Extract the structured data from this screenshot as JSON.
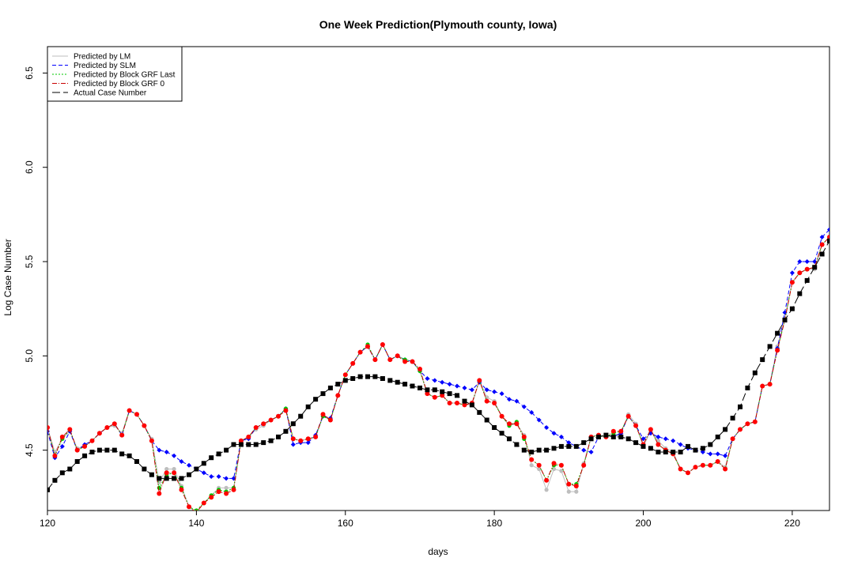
{
  "chart_data": {
    "type": "line",
    "title": "One Week Prediction(Plymouth county, Iowa)",
    "xlabel": "days",
    "ylabel": "Log Case Number",
    "xlim": [
      120,
      225
    ],
    "ylim": [
      4.18,
      6.64
    ],
    "x_ticks": [
      120,
      140,
      160,
      180,
      200,
      220
    ],
    "y_ticks": [
      4.5,
      5.0,
      5.5,
      6.0,
      6.5
    ],
    "legend_position": "top-left",
    "x": [
      120,
      121,
      122,
      123,
      124,
      125,
      126,
      127,
      128,
      129,
      130,
      131,
      132,
      133,
      134,
      135,
      136,
      137,
      138,
      139,
      140,
      141,
      142,
      143,
      144,
      145,
      146,
      147,
      148,
      149,
      150,
      151,
      152,
      153,
      154,
      155,
      156,
      157,
      158,
      159,
      160,
      161,
      162,
      163,
      164,
      165,
      166,
      167,
      168,
      169,
      170,
      171,
      172,
      173,
      174,
      175,
      176,
      177,
      178,
      179,
      180,
      181,
      182,
      183,
      184,
      185,
      186,
      187,
      188,
      189,
      190,
      191,
      192,
      193,
      194,
      195,
      196,
      197,
      198,
      199,
      200,
      201,
      202,
      203,
      204,
      205,
      206,
      207,
      208,
      209,
      210,
      211,
      212,
      213,
      214,
      215,
      216,
      217,
      218,
      219,
      220,
      221,
      222,
      223,
      224,
      225
    ],
    "series": [
      {
        "name": "Predicted by LM",
        "color": "#bebebe",
        "dash": "",
        "values": [
          4.62,
          4.49,
          4.56,
          4.6,
          4.51,
          4.52,
          4.55,
          4.59,
          4.62,
          4.63,
          4.59,
          4.71,
          4.69,
          4.63,
          4.56,
          4.33,
          4.4,
          4.4,
          4.31,
          4.2,
          4.17,
          4.22,
          4.26,
          4.3,
          4.3,
          4.3,
          4.55,
          4.57,
          4.61,
          4.63,
          4.66,
          4.68,
          4.72,
          4.56,
          4.55,
          4.56,
          4.57,
          4.68,
          4.66,
          4.79,
          4.9,
          4.96,
          5.02,
          5.05,
          4.98,
          5.06,
          4.98,
          5.0,
          4.98,
          4.97,
          4.92,
          4.8,
          4.78,
          4.79,
          4.75,
          4.75,
          4.74,
          4.74,
          4.87,
          4.78,
          4.76,
          4.68,
          4.63,
          4.64,
          4.58,
          4.42,
          4.4,
          4.29,
          4.4,
          4.39,
          4.28,
          4.28,
          4.43,
          4.57,
          4.58,
          4.57,
          4.58,
          4.59,
          4.69,
          4.64,
          4.52,
          4.6,
          4.55,
          4.51,
          4.49,
          4.4,
          4.38,
          4.41,
          4.42,
          4.42,
          4.44,
          4.41,
          4.56,
          4.61,
          4.64,
          4.65,
          4.84,
          4.85,
          5.05,
          5.2,
          5.39,
          5.44,
          5.46,
          5.46,
          5.59,
          5.63
        ]
      },
      {
        "name": "Predicted by SLM",
        "color": "#0000ff",
        "dash": "5,3",
        "values": [
          4.6,
          4.46,
          4.52,
          4.6,
          4.5,
          4.53,
          4.55,
          4.59,
          4.62,
          4.64,
          4.58,
          4.71,
          4.69,
          4.63,
          4.55,
          4.5,
          4.49,
          4.47,
          4.44,
          4.42,
          4.4,
          4.38,
          4.36,
          4.36,
          4.35,
          4.35,
          4.55,
          4.56,
          4.62,
          4.64,
          4.66,
          4.68,
          4.72,
          4.53,
          4.54,
          4.54,
          4.58,
          4.68,
          4.67,
          4.79,
          4.9,
          4.96,
          5.02,
          5.05,
          4.98,
          5.06,
          4.98,
          5.0,
          4.98,
          4.97,
          4.92,
          4.88,
          4.87,
          4.86,
          4.85,
          4.84,
          4.83,
          4.82,
          4.86,
          4.82,
          4.81,
          4.8,
          4.77,
          4.76,
          4.73,
          4.7,
          4.66,
          4.62,
          4.59,
          4.57,
          4.54,
          4.52,
          4.5,
          4.49,
          4.57,
          4.58,
          4.57,
          4.59,
          4.68,
          4.63,
          4.56,
          4.59,
          4.57,
          4.56,
          4.55,
          4.53,
          4.51,
          4.5,
          4.49,
          4.48,
          4.48,
          4.47,
          4.56,
          4.61,
          4.64,
          4.65,
          4.84,
          4.85,
          5.04,
          5.23,
          5.44,
          5.5,
          5.5,
          5.5,
          5.63,
          5.67
        ]
      },
      {
        "name": "Predicted by Block GRF Last",
        "color": "#00c800",
        "dash": "2,2",
        "values": [
          4.62,
          4.47,
          4.56,
          4.61,
          4.5,
          4.52,
          4.55,
          4.59,
          4.62,
          4.64,
          4.58,
          4.71,
          4.69,
          4.63,
          4.55,
          4.3,
          4.37,
          4.38,
          4.3,
          4.2,
          4.18,
          4.22,
          4.26,
          4.29,
          4.28,
          4.3,
          4.55,
          4.57,
          4.62,
          4.64,
          4.66,
          4.68,
          4.72,
          4.56,
          4.55,
          4.56,
          4.57,
          4.68,
          4.66,
          4.79,
          4.9,
          4.96,
          5.02,
          5.06,
          4.98,
          5.06,
          4.98,
          5.0,
          4.98,
          4.97,
          4.92,
          4.8,
          4.78,
          4.79,
          4.75,
          4.75,
          4.74,
          4.75,
          4.87,
          4.76,
          4.75,
          4.68,
          4.63,
          4.65,
          4.56,
          4.45,
          4.42,
          4.34,
          4.42,
          4.42,
          4.32,
          4.32,
          4.42,
          4.57,
          4.58,
          4.57,
          4.59,
          4.6,
          4.68,
          4.63,
          4.53,
          4.61,
          4.53,
          4.5,
          4.48,
          4.4,
          4.38,
          4.41,
          4.42,
          4.42,
          4.44,
          4.4,
          4.56,
          4.61,
          4.64,
          4.65,
          4.84,
          4.85,
          5.03,
          5.19,
          5.39,
          5.44,
          5.46,
          5.47,
          5.59,
          5.63
        ]
      },
      {
        "name": "Predicted by Block GRF 0",
        "color": "#c80000",
        "dash": "6,2,1,2",
        "values": [
          4.62,
          4.47,
          4.57,
          4.61,
          4.5,
          4.52,
          4.55,
          4.59,
          4.62,
          4.64,
          4.58,
          4.71,
          4.69,
          4.63,
          4.55,
          4.27,
          4.38,
          4.38,
          4.29,
          4.2,
          4.17,
          4.22,
          4.25,
          4.28,
          4.27,
          4.29,
          4.55,
          4.57,
          4.62,
          4.64,
          4.66,
          4.68,
          4.71,
          4.56,
          4.55,
          4.56,
          4.57,
          4.69,
          4.66,
          4.79,
          4.9,
          4.96,
          5.02,
          5.05,
          4.98,
          5.06,
          4.98,
          5.0,
          4.97,
          4.97,
          4.93,
          4.8,
          4.78,
          4.79,
          4.75,
          4.75,
          4.74,
          4.75,
          4.87,
          4.76,
          4.75,
          4.68,
          4.64,
          4.64,
          4.57,
          4.45,
          4.42,
          4.34,
          4.43,
          4.42,
          4.32,
          4.31,
          4.42,
          4.57,
          4.58,
          4.57,
          4.6,
          4.6,
          4.68,
          4.63,
          4.53,
          4.61,
          4.53,
          4.5,
          4.48,
          4.4,
          4.38,
          4.41,
          4.42,
          4.42,
          4.44,
          4.4,
          4.56,
          4.61,
          4.64,
          4.65,
          4.84,
          4.85,
          5.03,
          5.19,
          5.39,
          5.44,
          5.46,
          5.47,
          5.59,
          5.63
        ]
      },
      {
        "name": "Actual Case Number",
        "color": "#000000",
        "dash": "10,4",
        "values": [
          4.29,
          4.34,
          4.38,
          4.4,
          4.44,
          4.47,
          4.49,
          4.5,
          4.5,
          4.5,
          4.48,
          4.47,
          4.44,
          4.4,
          4.37,
          4.35,
          4.35,
          4.35,
          4.35,
          4.37,
          4.4,
          4.43,
          4.46,
          4.48,
          4.5,
          4.53,
          4.53,
          4.53,
          4.53,
          4.54,
          4.55,
          4.57,
          4.6,
          4.64,
          4.68,
          4.73,
          4.77,
          4.8,
          4.83,
          4.85,
          4.87,
          4.88,
          4.89,
          4.89,
          4.89,
          4.88,
          4.87,
          4.86,
          4.85,
          4.84,
          4.83,
          4.82,
          4.82,
          4.81,
          4.8,
          4.79,
          4.76,
          4.74,
          4.7,
          4.66,
          4.62,
          4.59,
          4.56,
          4.53,
          4.5,
          4.49,
          4.5,
          4.5,
          4.51,
          4.52,
          4.52,
          4.52,
          4.54,
          4.56,
          4.57,
          4.58,
          4.57,
          4.57,
          4.56,
          4.54,
          4.52,
          4.51,
          4.49,
          4.49,
          4.49,
          4.49,
          4.52,
          4.5,
          4.51,
          4.53,
          4.57,
          4.61,
          4.67,
          4.73,
          4.83,
          4.91,
          4.98,
          5.05,
          5.12,
          5.19,
          5.25,
          5.33,
          5.4,
          5.47,
          5.54,
          5.61
        ]
      }
    ]
  }
}
